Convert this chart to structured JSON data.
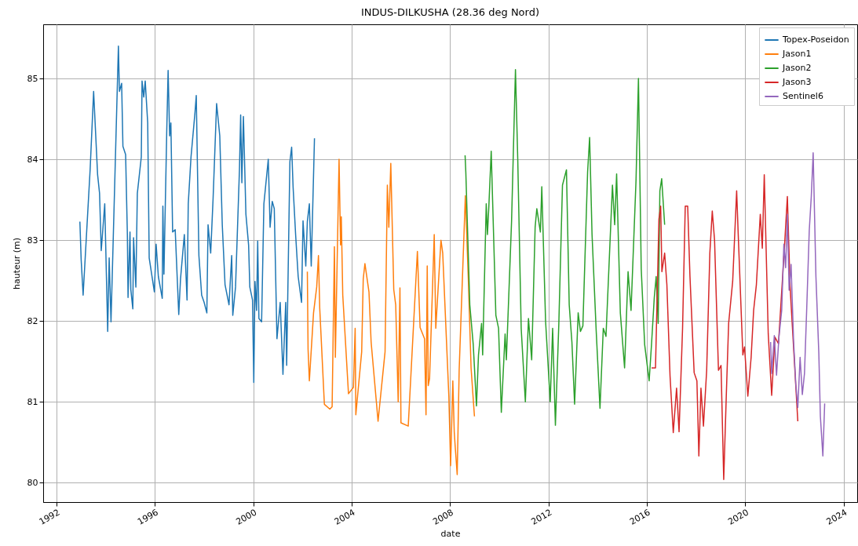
{
  "chart_data": {
    "type": "line",
    "title": "INDUS-DILKUSHA (28.36 deg Nord)",
    "xlabel": "date",
    "ylabel": "hauteur (m)",
    "xlim": [
      "1991-06-17",
      "2024-07-19"
    ],
    "xticks": [
      {
        "value": "1992",
        "label": "1992"
      },
      {
        "value": "1996",
        "label": "1996"
      },
      {
        "value": "2000",
        "label": "2000"
      },
      {
        "value": "2004",
        "label": "2004"
      },
      {
        "value": "2008",
        "label": "2008"
      },
      {
        "value": "2012",
        "label": "2012"
      },
      {
        "value": "2016",
        "label": "2016"
      },
      {
        "value": "2020",
        "label": "2020"
      },
      {
        "value": "2024",
        "label": "2024"
      }
    ],
    "ylim": [
      79.76,
      85.67
    ],
    "yticks": [
      80,
      81,
      82,
      83,
      84,
      85
    ],
    "grid": true,
    "legend": "top right",
    "marker": "none",
    "line_style": "solid",
    "series": [
      {
        "name": "Topex-Poseidon",
        "color": "#1f77b4",
        "x": [
          "1992-12-13",
          "1993-01-01",
          "1993-01-30",
          "1993-05-14",
          "1993-07-05",
          "1993-09-02",
          "1993-10-01",
          "1993-10-26",
          "1993-12-17",
          "1994-01-30",
          "1994-02-21",
          "1994-03-20",
          "1994-07-08",
          "1994-07-23",
          "1994-08-25",
          "1994-09-13",
          "1994-10-23",
          "1994-11-18",
          "1994-11-28",
          "1994-12-27",
          "1995-01-08",
          "1995-02-07",
          "1995-02-18",
          "1995-03-24",
          "1995-04-15",
          "1995-06-13",
          "1995-06-24",
          "1995-07-19",
          "1995-08-10",
          "1995-09-16",
          "1995-10-08",
          "1995-12-24",
          "1996-01-19",
          "1996-02-21",
          "1996-04-19",
          "1996-04-28",
          "1996-05-14",
          "1996-06-24",
          "1996-07-15",
          "1996-08-07",
          "1996-08-25",
          "1996-09-20",
          "1996-10-28",
          "1996-12-20",
          "1997-01-15",
          "1997-03-13",
          "1997-04-22",
          "1997-05-10",
          "1997-06-20",
          "1997-08-18",
          "1997-09-06",
          "1997-10-15",
          "1997-11-25",
          "1998-01-01",
          "1998-02-10",
          "1998-02-28",
          "1998-04-08",
          "1998-05-14",
          "1998-07-05",
          "1998-08-21",
          "1998-09-27",
          "1998-11-07",
          "1999-01-05",
          "1999-02-14",
          "1999-03-02",
          "1999-04-12",
          "1999-06-09",
          "1999-06-27",
          "1999-07-15",
          "1999-08-07",
          "1999-09-13",
          "1999-10-23",
          "1999-11-10",
          "1999-12-20",
          "2000-01-08",
          "2000-01-26",
          "2000-02-18",
          "2000-03-06",
          "2000-03-24",
          "2000-05-03",
          "2000-06-06",
          "2000-08-10",
          "2000-09-06",
          "2000-10-08",
          "2000-11-07",
          "2000-12-17",
          "2001-02-03",
          "2001-03-16",
          "2001-04-26",
          "2001-05-10",
          "2001-06-27",
          "2001-07-23",
          "2001-08-14",
          "2001-09-20",
          "2001-10-28",
          "2001-12-17",
          "2002-01-08",
          "2002-02-18",
          "2002-03-13",
          "2002-04-12",
          "2002-05-10",
          "2002-06-27"
        ],
        "values": [
          83.23,
          82.76,
          82.32,
          83.87,
          84.84,
          83.81,
          83.58,
          82.87,
          83.45,
          81.87,
          82.78,
          81.99,
          85.4,
          84.84,
          84.94,
          84.16,
          84.06,
          83.07,
          82.29,
          83.1,
          82.39,
          82.15,
          83.03,
          82.42,
          83.58,
          84.03,
          84.97,
          84.77,
          84.97,
          84.45,
          82.78,
          82.36,
          82.95,
          82.55,
          82.28,
          83.42,
          82.58,
          84.32,
          85.1,
          84.29,
          84.45,
          83.1,
          83.13,
          82.08,
          82.52,
          83.07,
          82.26,
          83.45,
          84.03,
          84.58,
          84.79,
          82.81,
          82.32,
          82.23,
          82.1,
          83.19,
          82.84,
          83.52,
          84.69,
          84.29,
          83.19,
          82.45,
          82.2,
          82.81,
          82.07,
          82.42,
          83.87,
          84.55,
          83.71,
          84.53,
          83.32,
          82.94,
          82.42,
          82.26,
          81.24,
          82.49,
          82.13,
          82.99,
          82.03,
          81.99,
          83.45,
          84.0,
          83.16,
          83.48,
          83.39,
          81.78,
          82.23,
          81.34,
          82.23,
          81.45,
          83.97,
          84.15,
          83.65,
          83.07,
          82.55,
          82.23,
          83.24,
          82.68,
          83.23,
          83.45,
          82.68,
          84.26
        ]
      },
      {
        "name": "Jason1",
        "color": "#ff7f0e",
        "x": [
          "2002-03-13",
          "2002-03-24",
          "2002-04-12",
          "2002-06-13",
          "2002-07-30",
          "2002-08-25",
          "2002-09-13",
          "2002-11-21",
          "2003-02-10",
          "2003-03-16",
          "2003-04-19",
          "2003-05-03",
          "2003-06-27",
          "2003-07-19",
          "2003-07-30",
          "2003-08-21",
          "2003-11-14",
          "2004-01-26",
          "2004-02-21",
          "2004-03-02",
          "2004-05-28",
          "2004-06-20",
          "2004-07-15",
          "2004-09-13",
          "2004-10-15",
          "2005-01-26",
          "2005-05-10",
          "2005-06-13",
          "2005-07-05",
          "2005-08-03",
          "2005-09-16",
          "2005-10-15",
          "2005-11-21",
          "2005-12-17",
          "2006-01-01",
          "2006-04-19",
          "2006-09-02",
          "2006-10-12",
          "2006-12-17",
          "2007-01-08",
          "2007-01-26",
          "2007-02-10",
          "2007-03-02",
          "2007-05-10",
          "2007-06-02",
          "2007-08-18",
          "2007-09-13",
          "2007-12-13",
          "2008-01-08",
          "2008-02-10",
          "2008-03-02",
          "2008-03-16",
          "2008-04-15",
          "2008-05-14",
          "2008-08-14",
          "2008-09-27",
          "2008-11-07",
          "2008-12-27"
        ],
        "values": [
          82.61,
          81.65,
          81.26,
          82.1,
          82.42,
          82.81,
          82.16,
          80.97,
          80.91,
          80.94,
          82.92,
          81.55,
          84.0,
          82.94,
          83.29,
          82.32,
          81.1,
          81.18,
          81.91,
          80.84,
          81.62,
          82.52,
          82.71,
          82.36,
          81.74,
          80.76,
          81.62,
          83.68,
          83.16,
          83.95,
          82.39,
          82.2,
          81.0,
          82.41,
          80.74,
          80.7,
          82.86,
          81.92,
          81.78,
          80.84,
          82.68,
          81.2,
          81.29,
          83.07,
          81.91,
          83.0,
          82.84,
          81.07,
          80.21,
          81.26,
          80.63,
          80.45,
          80.1,
          81.39,
          83.55,
          82.52,
          81.42,
          80.82
        ]
      },
      {
        "name": "Jason2",
        "color": "#2ca02c",
        "x": [
          "2008-08-10",
          "2008-08-21",
          "2008-10-19",
          "2008-12-09",
          "2009-01-26",
          "2009-02-25",
          "2009-04-12",
          "2009-04-28",
          "2009-06-20",
          "2009-07-08",
          "2009-07-29",
          "2009-09-02",
          "2009-11-10",
          "2009-12-20",
          "2010-01-30",
          "2010-03-27",
          "2010-04-15",
          "2010-07-01",
          "2010-08-28",
          "2010-10-01",
          "2010-11-21",
          "2011-01-22",
          "2011-03-09",
          "2011-04-26",
          "2011-06-16",
          "2011-07-11",
          "2011-09-02",
          "2011-09-23",
          "2011-11-18",
          "2012-01-26",
          "2012-03-02",
          "2012-04-12",
          "2012-06-02",
          "2012-07-26",
          "2012-09-23",
          "2012-11-03",
          "2012-12-13",
          "2013-01-22",
          "2013-03-16",
          "2013-04-19",
          "2013-05-25",
          "2013-08-03",
          "2013-09-02",
          "2013-10-08",
          "2013-12-09",
          "2014-02-03",
          "2014-03-24",
          "2014-05-03",
          "2014-08-07",
          "2014-09-09",
          "2014-10-08",
          "2014-12-02",
          "2015-02-03",
          "2015-03-27",
          "2015-05-10",
          "2015-07-23",
          "2015-08-28",
          "2015-10-08",
          "2015-11-28",
          "2016-02-03",
          "2016-03-09",
          "2016-04-19",
          "2016-05-17",
          "2016-06-16",
          "2016-07-11",
          "2016-08-07",
          "2016-09-20"
        ],
        "values": [
          84.05,
          83.84,
          82.2,
          81.71,
          80.95,
          81.58,
          81.97,
          81.58,
          83.45,
          83.07,
          83.42,
          84.1,
          82.07,
          81.91,
          80.87,
          81.84,
          81.52,
          83.23,
          85.11,
          84.0,
          81.91,
          81.0,
          82.03,
          81.52,
          83.16,
          83.39,
          83.1,
          83.66,
          82.0,
          81.0,
          81.91,
          80.71,
          81.97,
          83.68,
          83.87,
          82.2,
          81.74,
          80.97,
          82.1,
          81.87,
          81.94,
          83.84,
          84.27,
          83.07,
          81.87,
          80.92,
          81.91,
          81.81,
          83.68,
          83.19,
          83.82,
          82.1,
          81.42,
          82.61,
          82.13,
          83.74,
          85.0,
          82.65,
          81.71,
          81.26,
          81.71,
          82.29,
          82.55,
          81.97,
          83.61,
          83.76,
          83.19
        ]
      },
      {
        "name": "Jason3",
        "color": "#d62728",
        "x": [
          "2016-03-09",
          "2016-05-07",
          "2016-06-27",
          "2016-07-23",
          "2016-08-10",
          "2016-09-20",
          "2016-10-23",
          "2016-12-09",
          "2017-01-26",
          "2017-03-16",
          "2017-04-22",
          "2017-06-13",
          "2017-07-23",
          "2017-08-28",
          "2017-10-01",
          "2017-12-02",
          "2018-01-12",
          "2018-02-10",
          "2018-03-13",
          "2018-04-19",
          "2018-06-06",
          "2018-07-23",
          "2018-08-28",
          "2018-10-01",
          "2018-11-28",
          "2019-01-05",
          "2019-02-14",
          "2019-03-24",
          "2019-04-28",
          "2019-06-27",
          "2019-08-25",
          "2019-09-16",
          "2019-11-25",
          "2019-12-20",
          "2020-02-07",
          "2020-03-27",
          "2020-05-03",
          "2020-06-13",
          "2020-08-10",
          "2020-09-09",
          "2020-10-08",
          "2020-12-06",
          "2021-01-26",
          "2021-03-16",
          "2021-05-07",
          "2021-08-10",
          "2021-09-16",
          "2021-10-26",
          "2022-02-18"
        ],
        "values": [
          81.42,
          81.42,
          83.26,
          83.42,
          82.61,
          82.84,
          82.45,
          81.32,
          80.62,
          81.17,
          80.63,
          81.91,
          83.42,
          83.42,
          82.55,
          81.36,
          81.26,
          80.33,
          81.17,
          80.7,
          81.39,
          82.84,
          83.36,
          83.0,
          81.39,
          81.45,
          80.04,
          81.07,
          81.97,
          82.49,
          83.61,
          83.1,
          81.58,
          81.68,
          81.07,
          81.55,
          82.13,
          82.45,
          83.32,
          82.9,
          83.81,
          81.84,
          81.08,
          81.8,
          81.72,
          83.0,
          83.54,
          82.43,
          80.76
        ]
      },
      {
        "name": "Sentinel6",
        "color": "#9467bd",
        "x": [
          "2021-01-10",
          "2021-01-26",
          "2021-03-06",
          "2021-04-08",
          "2021-05-14",
          "2021-06-24",
          "2021-07-26",
          "2021-08-21",
          "2021-09-16",
          "2021-10-12",
          "2021-11-10",
          "2021-12-17",
          "2022-01-19",
          "2022-02-18",
          "2022-03-24",
          "2022-04-26",
          "2022-05-28",
          "2022-07-01",
          "2022-08-07",
          "2022-09-06",
          "2022-10-04",
          "2022-11-14",
          "2022-12-27",
          "2023-01-19",
          "2023-02-25",
          "2023-03-24"
        ],
        "values": [
          81.74,
          81.35,
          81.82,
          81.33,
          81.8,
          82.13,
          82.95,
          82.66,
          83.32,
          82.38,
          82.7,
          81.76,
          81.22,
          80.93,
          81.55,
          81.09,
          81.35,
          82.17,
          83.12,
          83.54,
          84.08,
          82.55,
          81.6,
          80.82,
          80.33,
          80.98
        ]
      }
    ]
  }
}
